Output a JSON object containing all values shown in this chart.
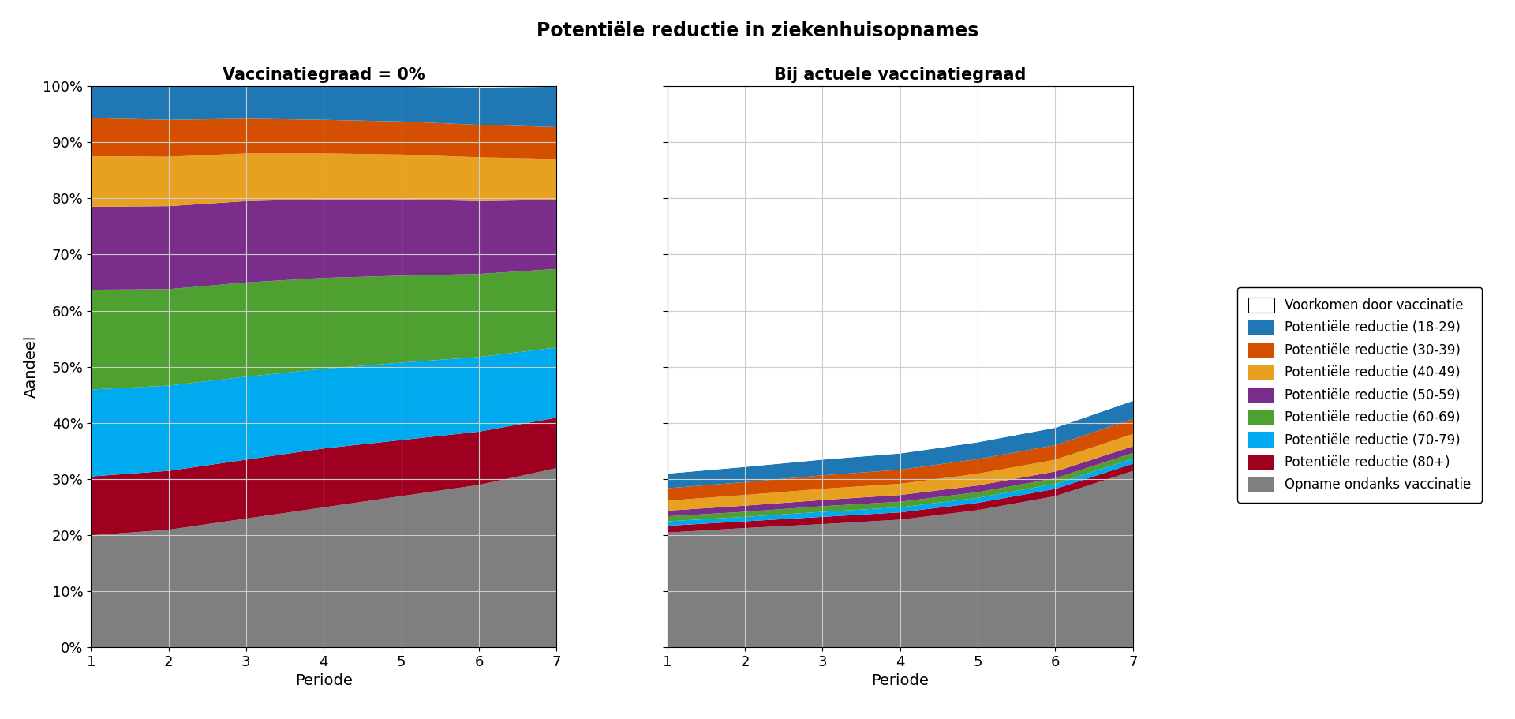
{
  "title": "Potentiële reductie in ziekenhuisopnames",
  "subtitle1": "Vaccinatiegraad = 0%",
  "subtitle2": "Bij actuele vaccinatiegraad",
  "xlabel": "Periode",
  "ylabel": "Aandeel",
  "periods": [
    1,
    2,
    3,
    4,
    5,
    6,
    7
  ],
  "colors": {
    "gray": "#7F7F7F",
    "darkred": "#A00020",
    "cyan": "#00AAEE",
    "green": "#4EA030",
    "purple": "#7B2D8B",
    "yellow": "#E8A020",
    "orange": "#D45000",
    "blue": "#1F77B4",
    "white": "#FFFFFF"
  },
  "legend_labels": [
    "Voorkomen door vaccinatie",
    "Potentiële reductie (18-29)",
    "Potentiële reductie (30-39)",
    "Potentiële reductie (40-49)",
    "Potentiële reductie (50-59)",
    "Potentiële reductie (60-69)",
    "Potentiële reductie (70-79)",
    "Potentiële reductie (80+)",
    "Opname ondanks vaccinatie"
  ],
  "left_layers_order": [
    "gray",
    "darkred",
    "cyan",
    "green",
    "purple",
    "yellow",
    "orange",
    "blue"
  ],
  "left_layers": {
    "gray": [
      0.2,
      0.21,
      0.23,
      0.25,
      0.27,
      0.29,
      0.32
    ],
    "darkred": [
      0.105,
      0.105,
      0.105,
      0.105,
      0.1,
      0.095,
      0.09
    ],
    "cyan": [
      0.155,
      0.152,
      0.148,
      0.142,
      0.138,
      0.133,
      0.125
    ],
    "green": [
      0.178,
      0.172,
      0.168,
      0.162,
      0.155,
      0.148,
      0.14
    ],
    "purple": [
      0.148,
      0.148,
      0.145,
      0.14,
      0.136,
      0.13,
      0.123
    ],
    "yellow": [
      0.09,
      0.088,
      0.085,
      0.082,
      0.08,
      0.078,
      0.073
    ],
    "orange": [
      0.068,
      0.066,
      0.062,
      0.06,
      0.059,
      0.058,
      0.057
    ],
    "blue": [
      0.056,
      0.059,
      0.057,
      0.059,
      0.062,
      0.066,
      0.072
    ]
  },
  "right_layers_order": [
    "gray",
    "darkred",
    "cyan",
    "green",
    "purple",
    "yellow",
    "orange",
    "blue"
  ],
  "right_layers": {
    "gray": [
      0.205,
      0.213,
      0.22,
      0.228,
      0.245,
      0.27,
      0.315
    ],
    "darkred": [
      0.012,
      0.012,
      0.013,
      0.013,
      0.013,
      0.013,
      0.013
    ],
    "cyan": [
      0.008,
      0.008,
      0.009,
      0.009,
      0.009,
      0.009,
      0.009
    ],
    "green": [
      0.009,
      0.009,
      0.01,
      0.01,
      0.01,
      0.01,
      0.01
    ],
    "purple": [
      0.01,
      0.011,
      0.011,
      0.012,
      0.012,
      0.012,
      0.012
    ],
    "yellow": [
      0.018,
      0.019,
      0.02,
      0.02,
      0.021,
      0.021,
      0.022
    ],
    "orange": [
      0.022,
      0.023,
      0.024,
      0.025,
      0.026,
      0.026,
      0.027
    ],
    "blue": [
      0.026,
      0.027,
      0.028,
      0.029,
      0.03,
      0.031,
      0.032
    ]
  }
}
